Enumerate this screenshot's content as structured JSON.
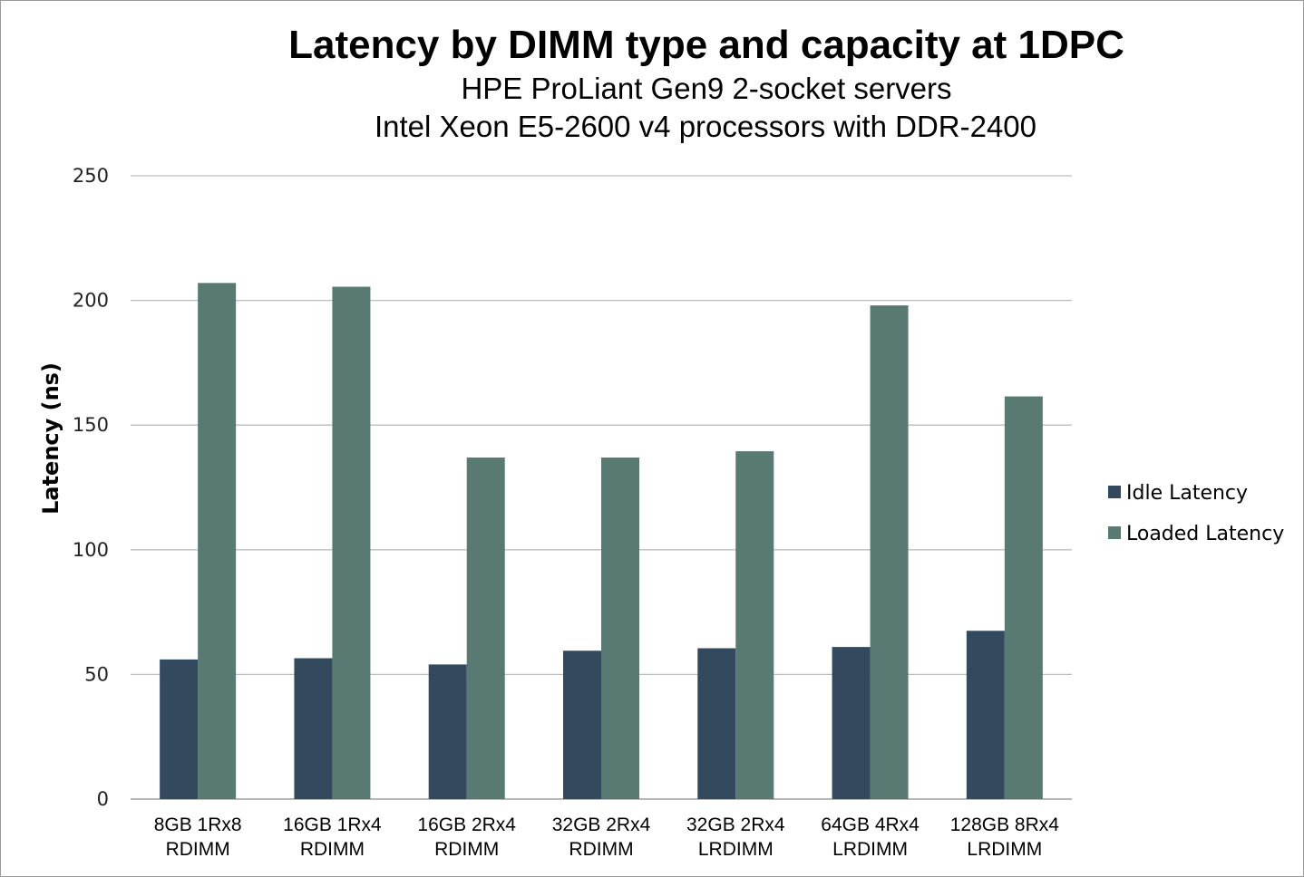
{
  "chart_data": {
    "type": "bar",
    "title": "Latency by DIMM type and capacity at 1DPC",
    "subtitle": [
      "HPE ProLiant Gen9 2-socket servers",
      "Intel Xeon E5-2600 v4 processors with DDR-2400"
    ],
    "xlabel": "",
    "ylabel": "Latency (ns)",
    "ylim": [
      0,
      250
    ],
    "yticks": [
      0,
      50,
      100,
      150,
      200,
      250
    ],
    "grid": true,
    "legend_position": "right",
    "categories": [
      [
        "8GB 1Rx8",
        "RDIMM"
      ],
      [
        "16GB 1Rx4",
        "RDIMM"
      ],
      [
        "16GB 2Rx4",
        "RDIMM"
      ],
      [
        "32GB 2Rx4",
        "RDIMM"
      ],
      [
        "32GB 2Rx4",
        "LRDIMM"
      ],
      [
        "64GB 4Rx4",
        "LRDIMM"
      ],
      [
        "128GB 8Rx4",
        "LRDIMM"
      ]
    ],
    "series": [
      {
        "name": "Idle Latency",
        "color": "#33495e",
        "values": [
          56,
          56.5,
          54,
          59.5,
          60.5,
          61,
          67.5
        ]
      },
      {
        "name": "Loaded Latency",
        "color": "#587a72",
        "values": [
          207,
          205.5,
          137,
          137,
          139.5,
          198,
          161.5
        ]
      }
    ]
  }
}
